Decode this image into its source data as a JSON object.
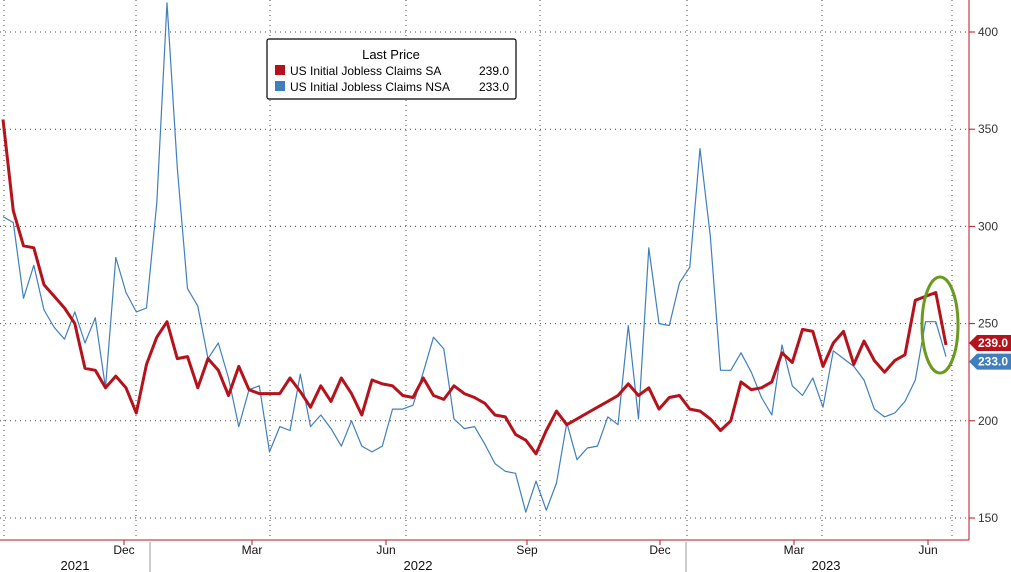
{
  "chart_data": {
    "type": "line",
    "legend": {
      "title": "Last Price",
      "position": "top-left",
      "entries": [
        {
          "label": "US Initial Jobless Claims SA",
          "value": "239.0"
        },
        {
          "label": "US Initial Jobless Claims NSA",
          "value": "233.0"
        }
      ]
    },
    "y_axis": {
      "position": "right",
      "ylim": [
        145,
        420
      ],
      "ticks": [
        "150",
        "200",
        "250",
        "300",
        "350",
        "400"
      ]
    },
    "x_axis": {
      "month_ticks": [
        "Dec",
        "Mar",
        "Jun",
        "Sep",
        "Dec",
        "Mar",
        "Jun"
      ],
      "years": [
        "2021",
        "2022",
        "2023"
      ]
    },
    "grid": true,
    "series": [
      {
        "name": "US Initial Jobless Claims SA",
        "color": "#b5121b",
        "last_value_label": "239.0",
        "values": [
          355,
          308,
          290,
          289,
          270,
          264,
          258,
          250,
          227,
          226,
          217,
          223,
          217,
          204,
          229,
          243,
          251,
          232,
          233,
          217,
          232,
          226,
          213,
          228,
          216,
          214,
          214,
          214,
          222,
          215,
          207,
          218,
          210,
          222,
          214,
          203,
          221,
          219,
          218,
          213,
          212,
          222,
          213,
          211,
          218,
          214,
          212,
          209,
          203,
          202,
          193,
          190,
          183,
          195,
          205,
          198,
          201,
          204,
          207,
          210,
          213,
          219,
          213,
          217,
          206,
          212,
          213,
          206,
          205,
          201,
          195,
          200,
          220,
          216,
          217,
          220,
          235,
          230,
          247,
          246,
          228,
          240,
          246,
          229,
          241,
          231,
          225,
          231,
          234,
          262,
          264,
          266,
          239
        ],
        "x": [
          0,
          1,
          2,
          3,
          4,
          5,
          6,
          7,
          8,
          9,
          10,
          11,
          12,
          13,
          14,
          15,
          16,
          17,
          18,
          19,
          20,
          21,
          22,
          23,
          24,
          25,
          26,
          27,
          28,
          29,
          30,
          31,
          32,
          33,
          34,
          35,
          36,
          37,
          38,
          39,
          40,
          41,
          42,
          43,
          44,
          45,
          46,
          47,
          48,
          49,
          50,
          51,
          52,
          53,
          54,
          55,
          56,
          57,
          58,
          59,
          60,
          61,
          62,
          63,
          64,
          65,
          66,
          67,
          68,
          69,
          70,
          71,
          72,
          73,
          74,
          75,
          76,
          77,
          78,
          79,
          80,
          81,
          82,
          83,
          84,
          85,
          86,
          87,
          88,
          89,
          90,
          91,
          92
        ]
      },
      {
        "name": "US Initial Jobless Claims NSA",
        "color": "#3f7fbf",
        "last_value_label": "233.0",
        "values": [
          305,
          302,
          263,
          280,
          257,
          248,
          242,
          256,
          240,
          253,
          217,
          284,
          266,
          256,
          258,
          312,
          415,
          330,
          268,
          259,
          232,
          240,
          222,
          197,
          216,
          218,
          184,
          197,
          195,
          224,
          197,
          203,
          196,
          187,
          200,
          187,
          184,
          187,
          206,
          206,
          208,
          225,
          243,
          237,
          201,
          196,
          197,
          188,
          178,
          174,
          173,
          153,
          169,
          154,
          168,
          199,
          180,
          186,
          187,
          202,
          198,
          249,
          201,
          289,
          250,
          249,
          271,
          279,
          340,
          295,
          226,
          226,
          235,
          225,
          212,
          203,
          239,
          218,
          213,
          222,
          207,
          236,
          232,
          228,
          221,
          206,
          202,
          204,
          210,
          221,
          251,
          251,
          233
        ],
        "x": [
          0,
          1,
          2,
          3,
          4,
          5,
          6,
          7,
          8,
          9,
          10,
          11,
          12,
          13,
          14,
          15,
          16,
          17,
          18,
          19,
          20,
          21,
          22,
          23,
          24,
          25,
          26,
          27,
          28,
          29,
          30,
          31,
          32,
          33,
          34,
          35,
          36,
          37,
          38,
          39,
          40,
          41,
          42,
          43,
          44,
          45,
          46,
          47,
          48,
          49,
          50,
          51,
          52,
          53,
          54,
          55,
          56,
          57,
          58,
          59,
          60,
          61,
          62,
          63,
          64,
          65,
          66,
          67,
          68,
          69,
          70,
          71,
          72,
          73,
          74,
          75,
          76,
          77,
          78,
          79,
          80,
          81,
          82,
          83,
          84,
          85,
          86,
          87,
          88,
          89,
          90,
          91,
          92
        ]
      }
    ],
    "annotation": {
      "type": "ellipse",
      "color": "#6a9a1f"
    }
  }
}
